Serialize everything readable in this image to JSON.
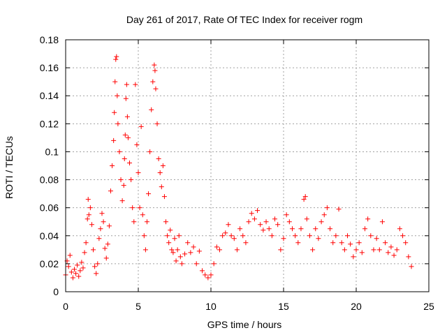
{
  "chart_data": {
    "type": "scatter",
    "title": "Day 261 of 2017, Rate Of TEC Index for receiver rogm",
    "xlabel": "GPS time / hours",
    "ylabel": "ROTI / TECUs",
    "xlim": [
      0,
      25
    ],
    "ylim": [
      0,
      0.18
    ],
    "xticks": [
      0,
      5,
      10,
      15,
      20,
      25
    ],
    "yticks": [
      0,
      0.02,
      0.04,
      0.06,
      0.08,
      0.1,
      0.12,
      0.14,
      0.16,
      0.18
    ],
    "xtick_labels": [
      "0",
      "5",
      "10",
      "15",
      "20",
      "25"
    ],
    "ytick_labels": [
      "0",
      "0.02",
      "0.04",
      "0.06",
      "0.08",
      "0.1",
      "0.12",
      "0.14",
      "0.16",
      "0.18"
    ],
    "grid": true,
    "marker": "plus",
    "color": "#ff0000",
    "series": [
      {
        "points": [
          [
            0.0,
            0.012
          ],
          [
            0.1,
            0.022
          ],
          [
            0.2,
            0.018
          ],
          [
            0.3,
            0.026
          ],
          [
            0.4,
            0.014
          ],
          [
            0.5,
            0.01
          ],
          [
            0.6,
            0.016
          ],
          [
            0.7,
            0.013
          ],
          [
            0.8,
            0.019
          ],
          [
            0.9,
            0.011
          ],
          [
            1.0,
            0.015
          ],
          [
            1.1,
            0.021
          ],
          [
            1.2,
            0.017
          ],
          [
            1.3,
            0.028
          ],
          [
            1.4,
            0.035
          ],
          [
            1.5,
            0.052
          ],
          [
            1.55,
            0.066
          ],
          [
            1.6,
            0.055
          ],
          [
            1.7,
            0.06
          ],
          [
            1.8,
            0.048
          ],
          [
            1.9,
            0.03
          ],
          [
            2.0,
            0.018
          ],
          [
            2.1,
            0.013
          ],
          [
            2.2,
            0.02
          ],
          [
            2.3,
            0.038
          ],
          [
            2.4,
            0.045
          ],
          [
            2.5,
            0.056
          ],
          [
            2.6,
            0.05
          ],
          [
            2.7,
            0.031
          ],
          [
            2.8,
            0.024
          ],
          [
            2.9,
            0.034
          ],
          [
            3.0,
            0.047
          ],
          [
            3.1,
            0.072
          ],
          [
            3.2,
            0.09
          ],
          [
            3.3,
            0.108
          ],
          [
            3.35,
            0.128
          ],
          [
            3.4,
            0.15
          ],
          [
            3.45,
            0.166
          ],
          [
            3.5,
            0.168
          ],
          [
            3.55,
            0.14
          ],
          [
            3.6,
            0.12
          ],
          [
            3.7,
            0.1
          ],
          [
            3.8,
            0.08
          ],
          [
            3.9,
            0.065
          ],
          [
            4.0,
            0.076
          ],
          [
            4.05,
            0.095
          ],
          [
            4.1,
            0.112
          ],
          [
            4.15,
            0.138
          ],
          [
            4.2,
            0.148
          ],
          [
            4.25,
            0.125
          ],
          [
            4.3,
            0.11
          ],
          [
            4.4,
            0.092
          ],
          [
            4.5,
            0.08
          ],
          [
            4.6,
            0.06
          ],
          [
            4.7,
            0.05
          ],
          [
            4.8,
            0.148
          ],
          [
            4.9,
            0.105
          ],
          [
            5.0,
            0.085
          ],
          [
            5.1,
            0.06
          ],
          [
            5.2,
            0.118
          ],
          [
            5.3,
            0.055
          ],
          [
            5.4,
            0.04
          ],
          [
            5.5,
            0.03
          ],
          [
            5.6,
            0.05
          ],
          [
            5.7,
            0.07
          ],
          [
            5.8,
            0.1
          ],
          [
            5.9,
            0.13
          ],
          [
            6.0,
            0.15
          ],
          [
            6.1,
            0.162
          ],
          [
            6.15,
            0.158
          ],
          [
            6.2,
            0.145
          ],
          [
            6.3,
            0.12
          ],
          [
            6.4,
            0.095
          ],
          [
            6.5,
            0.085
          ],
          [
            6.6,
            0.075
          ],
          [
            6.7,
            0.09
          ],
          [
            6.8,
            0.068
          ],
          [
            6.9,
            0.05
          ],
          [
            7.0,
            0.04
          ],
          [
            7.1,
            0.035
          ],
          [
            7.2,
            0.044
          ],
          [
            7.3,
            0.03
          ],
          [
            7.4,
            0.028
          ],
          [
            7.5,
            0.038
          ],
          [
            7.6,
            0.022
          ],
          [
            7.7,
            0.03
          ],
          [
            7.8,
            0.04
          ],
          [
            7.9,
            0.025
          ],
          [
            8.0,
            0.02
          ],
          [
            8.2,
            0.027
          ],
          [
            8.4,
            0.035
          ],
          [
            8.6,
            0.028
          ],
          [
            8.8,
            0.032
          ],
          [
            9.0,
            0.02
          ],
          [
            9.2,
            0.029
          ],
          [
            9.4,
            0.015
          ],
          [
            9.6,
            0.012
          ],
          [
            9.8,
            0.01
          ],
          [
            10.0,
            0.012
          ],
          [
            10.2,
            0.02
          ],
          [
            10.4,
            0.032
          ],
          [
            10.6,
            0.03
          ],
          [
            10.8,
            0.04
          ],
          [
            11.0,
            0.042
          ],
          [
            11.2,
            0.048
          ],
          [
            11.4,
            0.04
          ],
          [
            11.6,
            0.038
          ],
          [
            11.8,
            0.03
          ],
          [
            12.0,
            0.045
          ],
          [
            12.2,
            0.04
          ],
          [
            12.4,
            0.035
          ],
          [
            12.6,
            0.05
          ],
          [
            12.8,
            0.056
          ],
          [
            13.0,
            0.052
          ],
          [
            13.2,
            0.058
          ],
          [
            13.4,
            0.048
          ],
          [
            13.6,
            0.044
          ],
          [
            13.8,
            0.05
          ],
          [
            14.0,
            0.045
          ],
          [
            14.2,
            0.04
          ],
          [
            14.4,
            0.052
          ],
          [
            14.6,
            0.048
          ],
          [
            14.8,
            0.03
          ],
          [
            15.0,
            0.038
          ],
          [
            15.2,
            0.055
          ],
          [
            15.4,
            0.05
          ],
          [
            15.6,
            0.045
          ],
          [
            15.8,
            0.04
          ],
          [
            16.0,
            0.035
          ],
          [
            16.2,
            0.045
          ],
          [
            16.4,
            0.066
          ],
          [
            16.5,
            0.068
          ],
          [
            16.6,
            0.052
          ],
          [
            16.8,
            0.04
          ],
          [
            17.0,
            0.03
          ],
          [
            17.2,
            0.045
          ],
          [
            17.4,
            0.038
          ],
          [
            17.6,
            0.05
          ],
          [
            17.8,
            0.055
          ],
          [
            18.0,
            0.06
          ],
          [
            18.2,
            0.045
          ],
          [
            18.4,
            0.035
          ],
          [
            18.6,
            0.04
          ],
          [
            18.8,
            0.059
          ],
          [
            19.0,
            0.035
          ],
          [
            19.2,
            0.03
          ],
          [
            19.4,
            0.04
          ],
          [
            19.6,
            0.034
          ],
          [
            19.8,
            0.025
          ],
          [
            20.0,
            0.03
          ],
          [
            20.2,
            0.035
          ],
          [
            20.4,
            0.028
          ],
          [
            20.6,
            0.045
          ],
          [
            20.8,
            0.052
          ],
          [
            21.0,
            0.04
          ],
          [
            21.2,
            0.03
          ],
          [
            21.4,
            0.038
          ],
          [
            21.6,
            0.03
          ],
          [
            21.8,
            0.05
          ],
          [
            22.0,
            0.035
          ],
          [
            22.2,
            0.028
          ],
          [
            22.4,
            0.032
          ],
          [
            22.6,
            0.026
          ],
          [
            22.8,
            0.03
          ],
          [
            23.0,
            0.045
          ],
          [
            23.2,
            0.04
          ],
          [
            23.4,
            0.035
          ],
          [
            23.6,
            0.025
          ],
          [
            23.8,
            0.018
          ]
        ]
      }
    ]
  }
}
